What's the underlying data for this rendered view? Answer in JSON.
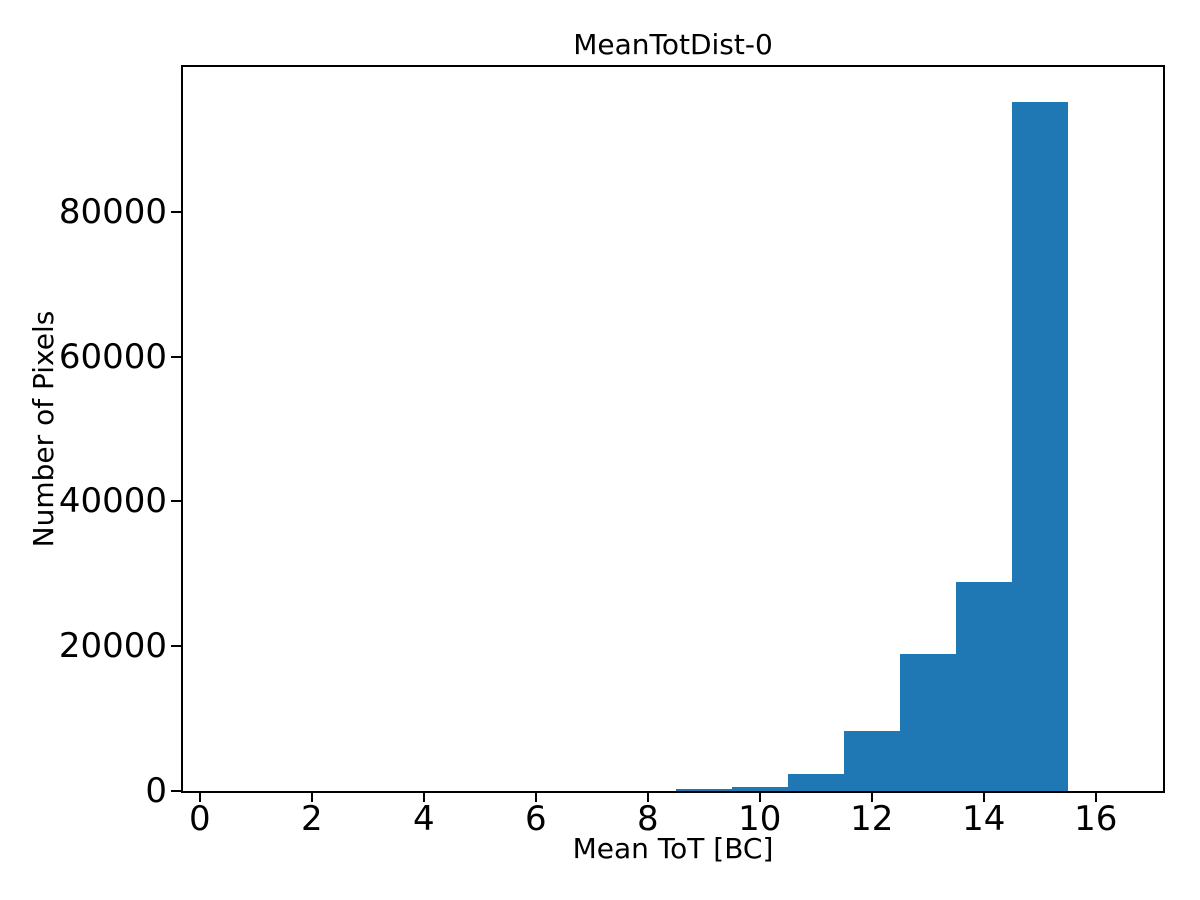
{
  "chart_data": {
    "type": "bar",
    "subtype": "histogram",
    "title": "MeanTotDist-0",
    "xlabel": "Mean ToT [BC]",
    "ylabel": "Number of Pixels",
    "bar_color": "#1f77b4",
    "axis_color": "#000000",
    "background_color": "#ffffff",
    "grid": false,
    "legend_position": "none",
    "xlim": [
      -0.3,
      17.2
    ],
    "ylim": [
      0,
      100000
    ],
    "xticks": [
      0,
      2,
      4,
      6,
      8,
      10,
      12,
      14,
      16
    ],
    "yticks": [
      0,
      20000,
      40000,
      60000,
      80000
    ],
    "bin_width": 1,
    "bins": [
      {
        "x0": 8.5,
        "x1": 9.5,
        "count": 300
      },
      {
        "x0": 9.5,
        "x1": 10.5,
        "count": 550
      },
      {
        "x0": 10.5,
        "x1": 11.5,
        "count": 2400
      },
      {
        "x0": 11.5,
        "x1": 12.5,
        "count": 8300
      },
      {
        "x0": 12.5,
        "x1": 13.5,
        "count": 18900
      },
      {
        "x0": 13.5,
        "x1": 14.5,
        "count": 28900
      },
      {
        "x0": 14.5,
        "x1": 15.5,
        "count": 95200
      }
    ]
  }
}
